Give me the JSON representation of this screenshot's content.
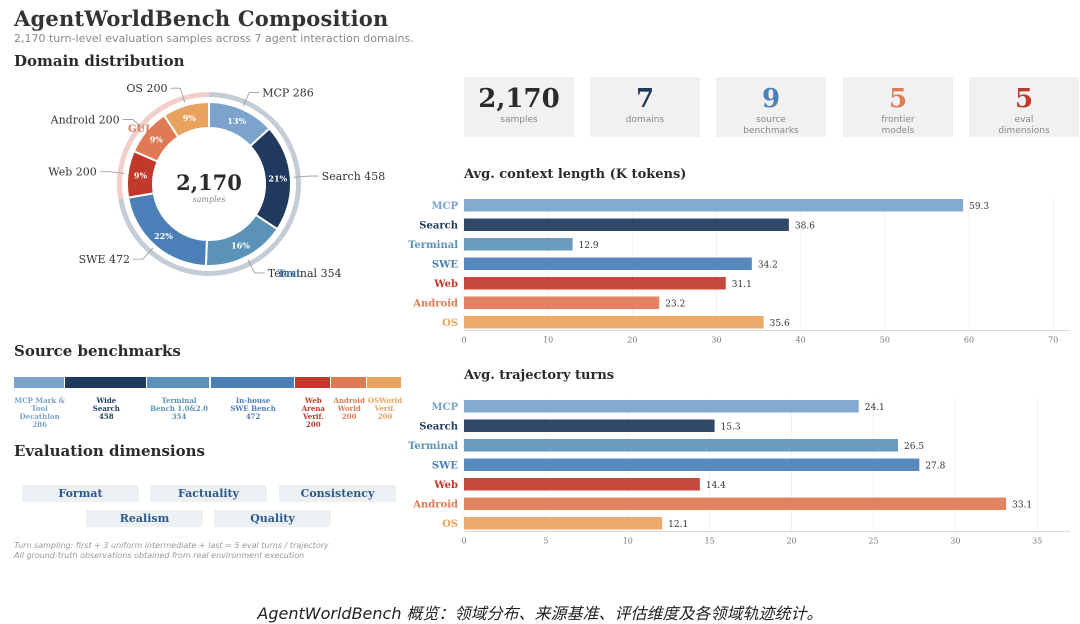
{
  "title": "AgentWorldBench Composition",
  "subtitle": "2,170 turn-level evaluation samples across 7 agent interaction domains.",
  "sections": {
    "domain": "Domain distribution",
    "source": "Source benchmarks",
    "eval": "Evaluation dimensions"
  },
  "colors": {
    "MCP": "#7ba3cc",
    "Search": "#1f3a5c",
    "Terminal": "#5b93b8",
    "SWE": "#4a7fb8",
    "Web": "#c0392b",
    "Android": "#e07a55",
    "OS": "#eaa35e"
  },
  "stats": [
    {
      "value": "2,170",
      "label": "samples",
      "color": "#2b2b2b"
    },
    {
      "value": "7",
      "label": "domains",
      "color": "#1f3a5c"
    },
    {
      "value": "9",
      "label": "source\nbenchmarks",
      "color": "#4a7fb8"
    },
    {
      "value": "5",
      "label": "frontier\nmodels",
      "color": "#e07a55"
    },
    {
      "value": "5",
      "label": "eval\ndimensions",
      "color": "#c0392b"
    }
  ],
  "chart_data": [
    {
      "type": "pie",
      "title": "",
      "center_value": "2,170",
      "center_label": "samples",
      "group_labels": {
        "gui": "GUI",
        "text": "Text"
      },
      "slices": [
        {
          "name": "MCP",
          "value": 286,
          "pct": "13%",
          "label": "MCP  286"
        },
        {
          "name": "Search",
          "value": 458,
          "pct": "21%",
          "label": "Search  458"
        },
        {
          "name": "Terminal",
          "value": 354,
          "pct": "16%",
          "label": "Terminal  354"
        },
        {
          "name": "SWE",
          "value": 472,
          "pct": "22%",
          "label": "SWE  472"
        },
        {
          "name": "Web",
          "value": 200,
          "pct": "9%",
          "label": "Web  200"
        },
        {
          "name": "Android",
          "value": 200,
          "pct": "9%",
          "label": "Android  200"
        },
        {
          "name": "OS",
          "value": 200,
          "pct": "9%",
          "label": "OS  200"
        }
      ]
    },
    {
      "type": "bar",
      "orientation": "horizontal",
      "title": "Avg. context length (K tokens)",
      "categories": [
        "MCP",
        "Search",
        "Terminal",
        "SWE",
        "Web",
        "Android",
        "OS"
      ],
      "values": [
        59.3,
        38.6,
        12.9,
        34.2,
        31.1,
        23.2,
        35.6
      ],
      "xlim": [
        0,
        72
      ],
      "xticks": [
        0,
        10,
        20,
        30,
        40,
        50,
        60,
        70
      ],
      "grid": true
    },
    {
      "type": "bar",
      "orientation": "horizontal",
      "title": "Avg. trajectory turns",
      "categories": [
        "MCP",
        "Search",
        "Terminal",
        "SWE",
        "Web",
        "Android",
        "OS"
      ],
      "values": [
        24.1,
        15.3,
        26.5,
        27.8,
        14.4,
        33.1,
        12.1
      ],
      "xlim": [
        0,
        37
      ],
      "xticks": [
        0,
        5,
        10,
        15,
        20,
        25,
        30,
        35
      ],
      "grid": true
    },
    {
      "type": "bar",
      "orientation": "stacked-horizontal",
      "title": "",
      "series": [
        {
          "name": "MCP Mark &\nTool Decathlon",
          "value": 286,
          "domain": "MCP"
        },
        {
          "name": "Wide\nSearch",
          "value": 458,
          "domain": "Search"
        },
        {
          "name": "Terminal\nBench 1.0&2.0",
          "value": 354,
          "domain": "Terminal"
        },
        {
          "name": "In-house\nSWE Bench",
          "value": 472,
          "domain": "SWE"
        },
        {
          "name": "Web\nArena Verif.",
          "value": 200,
          "domain": "Web"
        },
        {
          "name": "Android\nWorld",
          "value": 200,
          "domain": "Android"
        },
        {
          "name": "OSWorld\nVerif.",
          "value": 200,
          "domain": "OS"
        }
      ]
    }
  ],
  "eval_dimensions": [
    "Format",
    "Factuality",
    "Consistency",
    "Realism",
    "Quality"
  ],
  "notes": [
    "Turn sampling: first + 3 uniform intermediate + last = 5 eval turns / trajectory",
    "All ground-truth observations obtained from real environment execution"
  ],
  "caption": "AgentWorldBench 概览：领域分布、来源基准、评估维度及各领域轨迹统计。"
}
